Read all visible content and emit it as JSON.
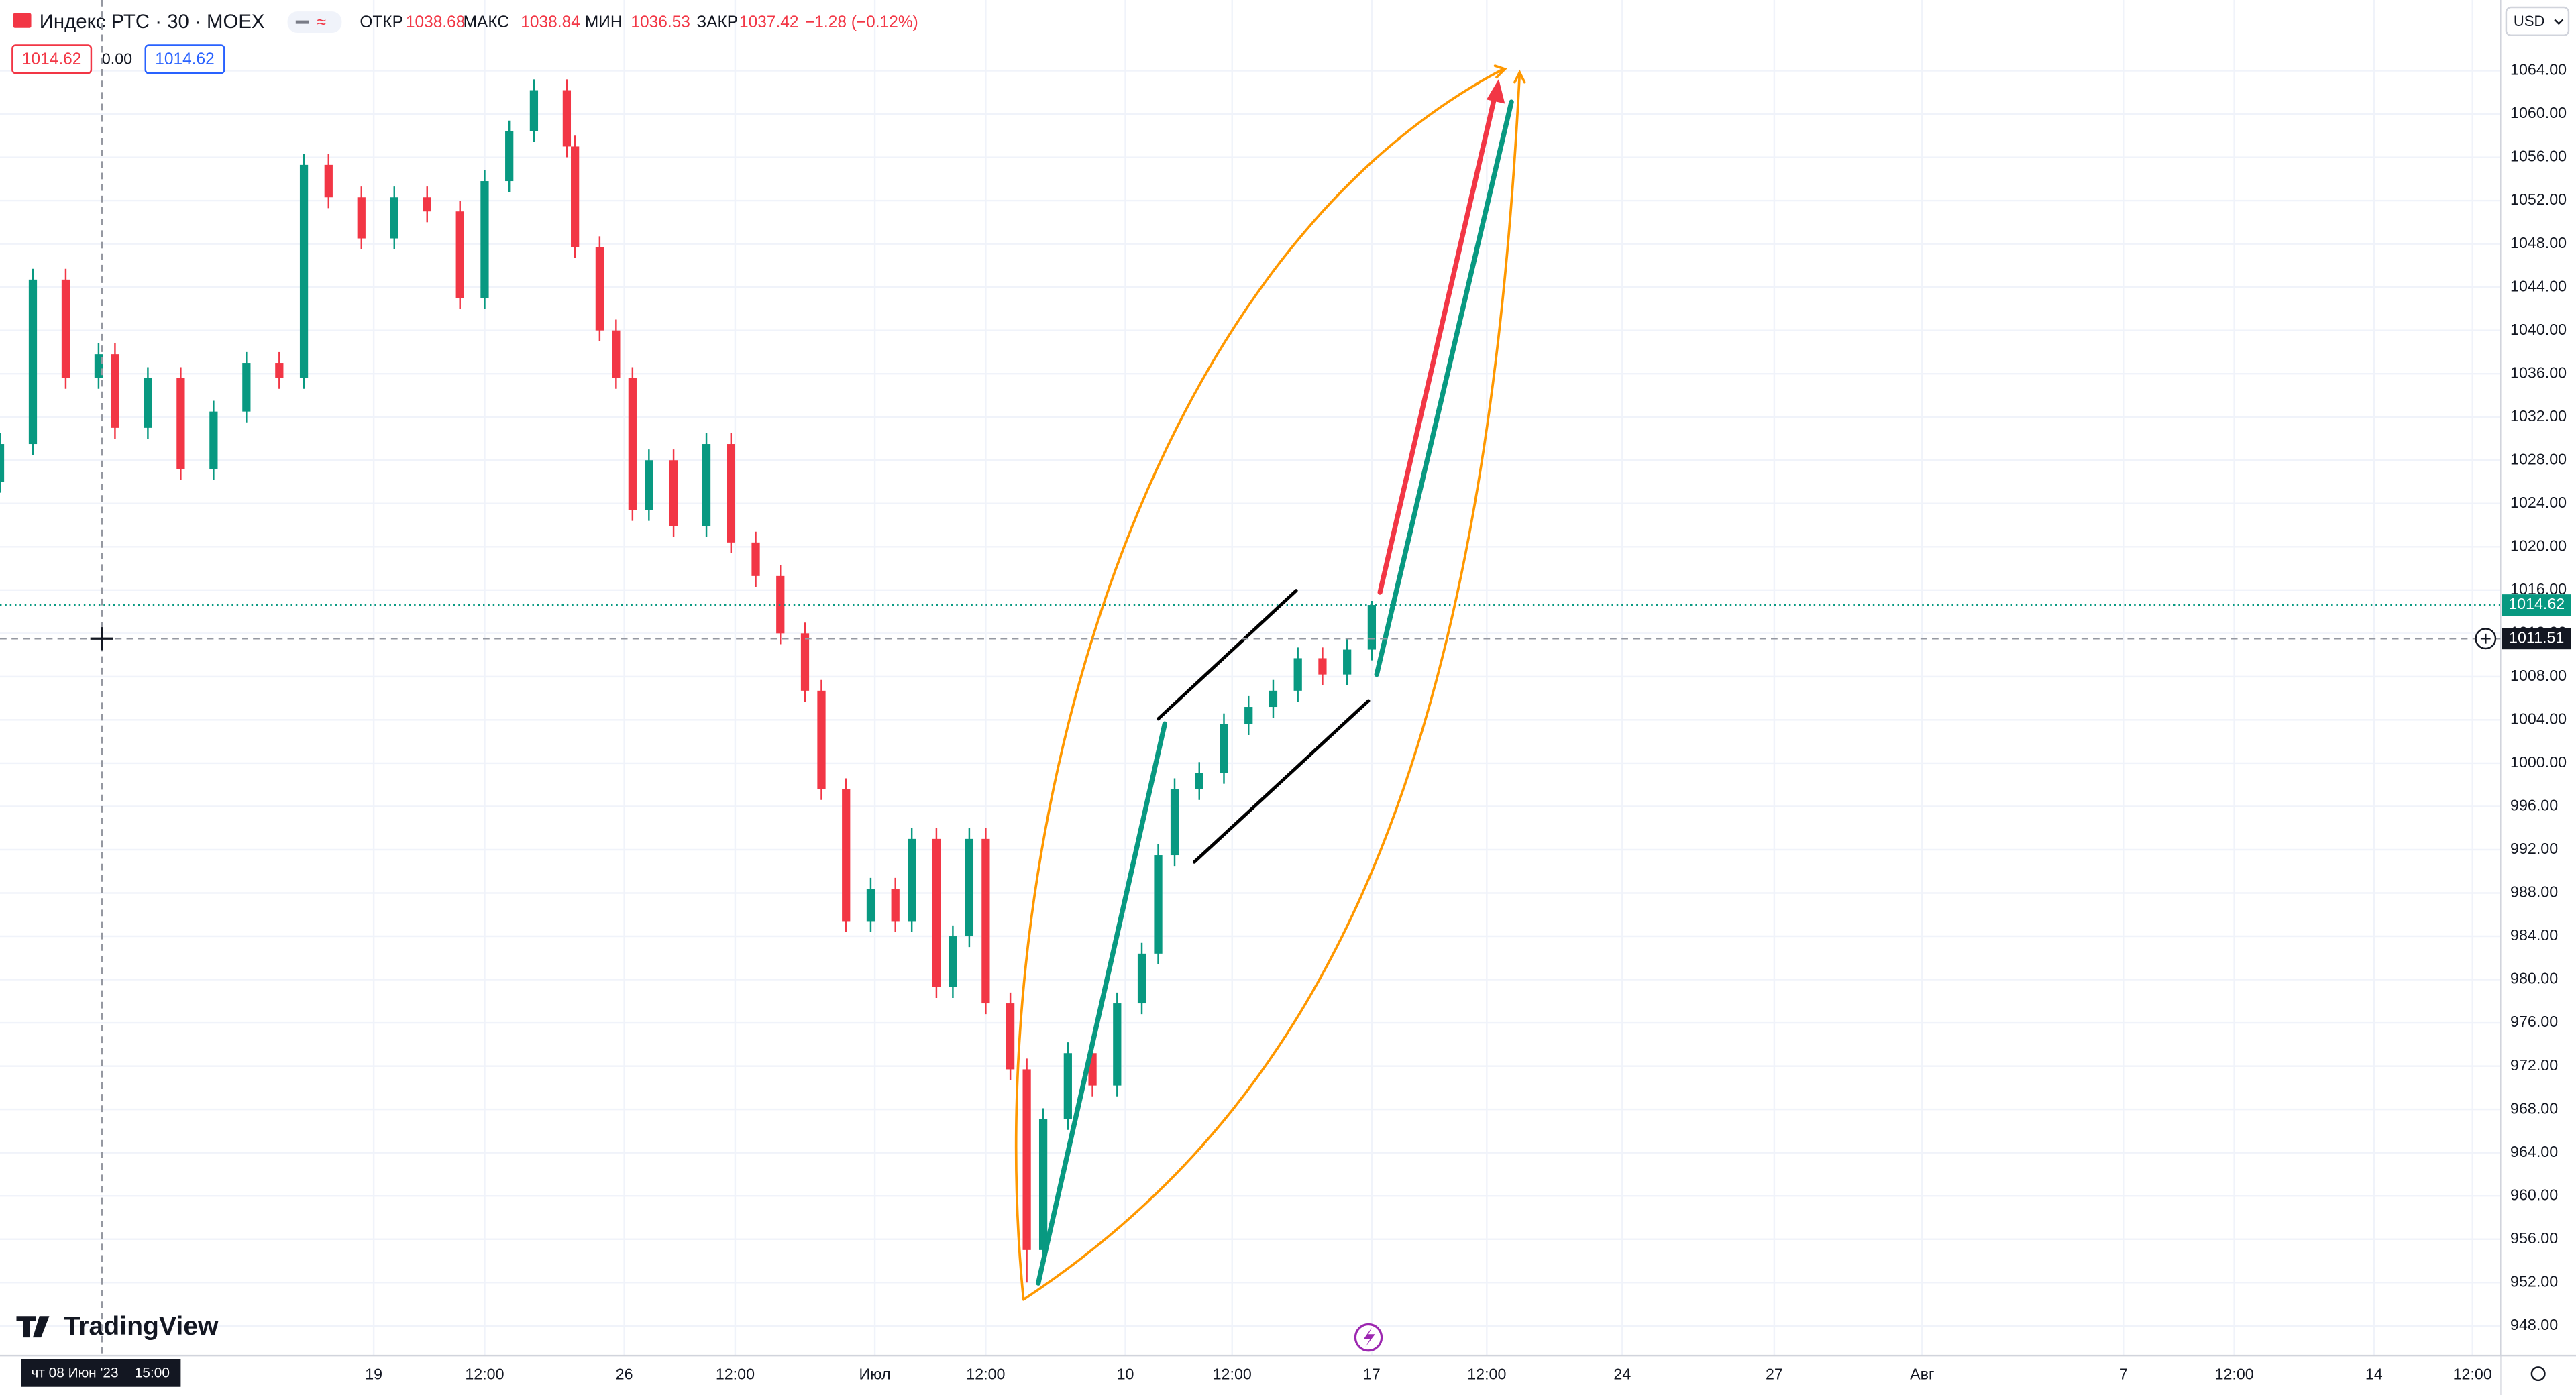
{
  "chart_data": {
    "type": "candlestick",
    "legend": {
      "symbol": "Индекс РТС · 30 · MOEX",
      "open_label": "ОТКР",
      "open": 1038.68,
      "high_label": "МАКС",
      "high": 1038.84,
      "low_label": "МИН",
      "low": 1036.53,
      "close_label": "ЗАКР",
      "close": 1037.42,
      "change": "−1.28 (−0.12%)",
      "bid": 1014.62,
      "spread": "0.00",
      "ask": 1014.62
    },
    "currency": "USD",
    "watermark": "TradingView",
    "up_color": "#089981",
    "down_color": "#f23645",
    "grid": true,
    "x": [
      0,
      8,
      16,
      24,
      28,
      36,
      44,
      52,
      60,
      68,
      74,
      80,
      88,
      96,
      104,
      112,
      118,
      124,
      130,
      138,
      140,
      146,
      150,
      154,
      158,
      164,
      172,
      178,
      184,
      190,
      196,
      200,
      206,
      212,
      218,
      222,
      228,
      232,
      236,
      240,
      246,
      250,
      254,
      260,
      266,
      272,
      278,
      282,
      286,
      292,
      298,
      304,
      310,
      316,
      322,
      328,
      334
    ],
    "open": [
      1026,
      1029.5,
      1044.7,
      1035.6,
      1037.8,
      1031,
      1035.6,
      1027.2,
      1032.5,
      1037,
      1035.6,
      1055.3,
      1052.3,
      1048.5,
      1052.3,
      1051,
      1043,
      1053.8,
      1058.4,
      1062.2,
      1057,
      1047.7,
      1040,
      1035.6,
      1023.4,
      1028,
      1021.9,
      1029.5,
      1020.4,
      1017.3,
      1012,
      1006.7,
      997.6,
      985.4,
      988.4,
      985.4,
      993,
      979.3,
      984,
      993,
      977.8,
      971.7,
      955,
      967.1,
      973.2,
      970.2,
      977.8,
      982.4,
      991.5,
      997.6,
      999.1,
      1003.6,
      1005.2,
      1006.7,
      1009.7,
      1008.2,
      1010.5
    ],
    "high": [
      1030.5,
      1045.7,
      1045.7,
      1038.8,
      1038.8,
      1036.6,
      1036.6,
      1033.5,
      1038,
      1038,
      1056.3,
      1056.3,
      1053.3,
      1053.3,
      1053.3,
      1052,
      1054.8,
      1059.4,
      1063.2,
      1063.2,
      1058,
      1048.7,
      1041,
      1036.6,
      1029,
      1029,
      1030.5,
      1030.5,
      1021.4,
      1018.3,
      1013,
      1007.7,
      998.6,
      989.4,
      989.4,
      994,
      994,
      985,
      994,
      994,
      978.8,
      972.7,
      968.1,
      974.2,
      974.2,
      978.8,
      983.4,
      992.5,
      998.6,
      1000.1,
      1004.6,
      1006.2,
      1007.7,
      1010.7,
      1010.7,
      1011.5,
      1015
    ],
    "low": [
      1025,
      1028.5,
      1034.6,
      1034.6,
      1030,
      1030,
      1026.2,
      1026.2,
      1031.5,
      1034.6,
      1034.6,
      1051.3,
      1047.5,
      1047.5,
      1050,
      1042,
      1042,
      1052.8,
      1057.4,
      1056,
      1046.7,
      1039,
      1034.6,
      1022.4,
      1022.4,
      1020.9,
      1020.9,
      1019.4,
      1016.3,
      1011,
      1005.7,
      996.6,
      984.4,
      984.4,
      984.4,
      984.4,
      978.3,
      978.3,
      983,
      976.8,
      970.7,
      952,
      954,
      966.1,
      969.2,
      969.2,
      976.8,
      981.4,
      990.5,
      996.6,
      998.1,
      1002.6,
      1004.2,
      1005.7,
      1007.2,
      1007.2,
      1009.5
    ],
    "close": [
      1029.5,
      1044.7,
      1035.6,
      1037.8,
      1031,
      1035.6,
      1027.2,
      1032.5,
      1037,
      1035.6,
      1055.3,
      1052.3,
      1048.5,
      1052.3,
      1051,
      1043,
      1053.8,
      1058.4,
      1062.2,
      1057,
      1047.7,
      1040,
      1035.6,
      1023.4,
      1028,
      1021.9,
      1029.5,
      1020.4,
      1017.3,
      1012,
      1006.7,
      997.6,
      985.4,
      988.4,
      985.4,
      993,
      979.3,
      984,
      993,
      977.8,
      971.7,
      955,
      967.1,
      973.2,
      970.2,
      977.8,
      982.4,
      991.5,
      997.6,
      999.1,
      1003.6,
      1005.2,
      1006.7,
      1009.7,
      1008.2,
      1010.5,
      1014.62
    ],
    "xlim": [
      0,
      608.8
    ],
    "xticks": [
      {
        "value": 91,
        "label": "19"
      },
      {
        "value": 118,
        "label": "12:00"
      },
      {
        "value": 152,
        "label": "26"
      },
      {
        "value": 179,
        "label": "12:00"
      },
      {
        "value": 213,
        "label": "Июл"
      },
      {
        "value": 240,
        "label": "12:00"
      },
      {
        "value": 274,
        "label": "10"
      },
      {
        "value": 300,
        "label": "12:00"
      },
      {
        "value": 334,
        "label": "17"
      },
      {
        "value": 362,
        "label": "12:00"
      },
      {
        "value": 395,
        "label": "24"
      },
      {
        "value": 432,
        "label": "27"
      },
      {
        "value": 468,
        "label": "Авг"
      },
      {
        "value": 517,
        "label": "7"
      },
      {
        "value": 544,
        "label": "12:00"
      },
      {
        "value": 578,
        "label": "14"
      },
      {
        "value": 602,
        "label": "12:00"
      }
    ],
    "ylim": [
      945.25,
      1070.54
    ],
    "yticks": [
      {
        "value": 948,
        "label": "948.00"
      },
      {
        "value": 952,
        "label": "952.00"
      },
      {
        "value": 956,
        "label": "956.00"
      },
      {
        "value": 960,
        "label": "960.00"
      },
      {
        "value": 964,
        "label": "964.00"
      },
      {
        "value": 968,
        "label": "968.00"
      },
      {
        "value": 972,
        "label": "972.00"
      },
      {
        "value": 976,
        "label": "976.00"
      },
      {
        "value": 980,
        "label": "980.00"
      },
      {
        "value": 984,
        "label": "984.00"
      },
      {
        "value": 988,
        "label": "988.00"
      },
      {
        "value": 992,
        "label": "992.00"
      },
      {
        "value": 996,
        "label": "996.00"
      },
      {
        "value": 1000,
        "label": "1000.00"
      },
      {
        "value": 1004,
        "label": "1004.00"
      },
      {
        "value": 1008,
        "label": "1008.00"
      },
      {
        "value": 1012,
        "label": "1012.00"
      },
      {
        "value": 1016,
        "label": "1016.00"
      },
      {
        "value": 1020,
        "label": "1020.00"
      },
      {
        "value": 1024,
        "label": "1024.00"
      },
      {
        "value": 1028,
        "label": "1028.00"
      },
      {
        "value": 1032,
        "label": "1032.00"
      },
      {
        "value": 1036,
        "label": "1036.00"
      },
      {
        "value": 1040,
        "label": "1040.00"
      },
      {
        "value": 1044,
        "label": "1044.00"
      },
      {
        "value": 1048,
        "label": "1048.00"
      },
      {
        "value": 1052,
        "label": "1052.00"
      },
      {
        "value": 1056,
        "label": "1056.00"
      },
      {
        "value": 1060,
        "label": "1060.00"
      },
      {
        "value": 1064,
        "label": "1064.00"
      }
    ],
    "crosshair": {
      "x": 24.8,
      "price": 1011.51,
      "date": "чт 08 Июн '23",
      "time": "15:00"
    }
  }
}
